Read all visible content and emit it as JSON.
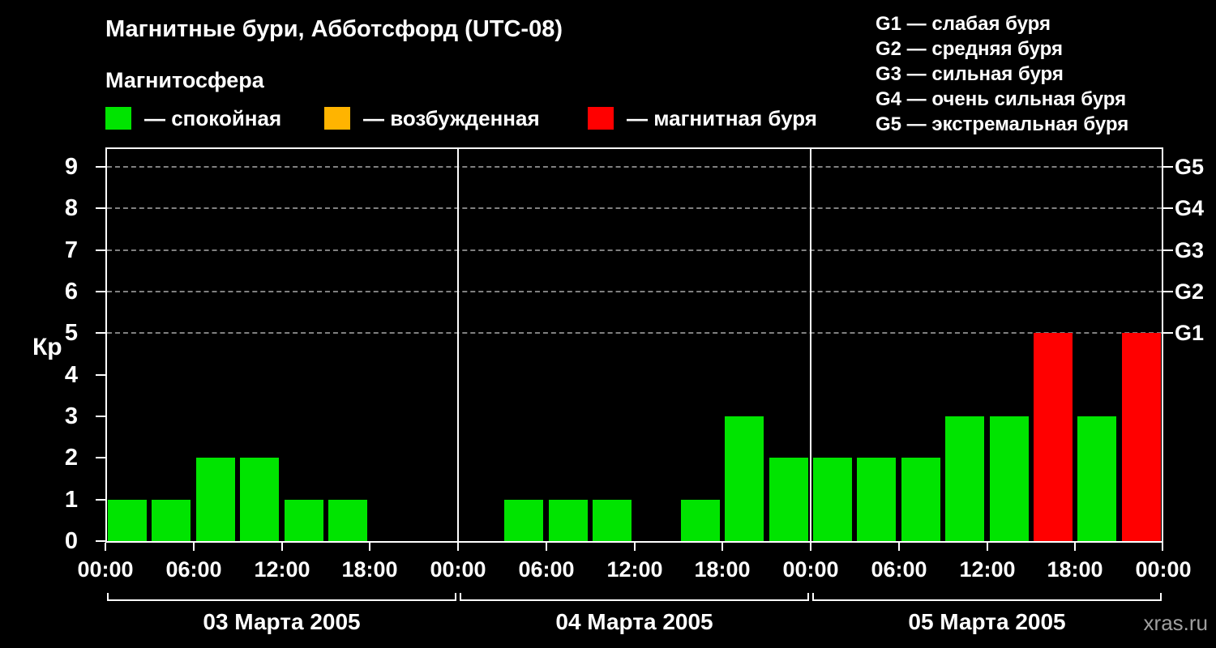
{
  "title": "Магнитные бури, Абботсфорд (UTC-08)",
  "subtitle": "Магнитосфера",
  "watermark": "xras.ru",
  "legend": {
    "items": [
      {
        "label": "— спокойная",
        "color": "#00e400"
      },
      {
        "label": "— возбужденная",
        "color": "#ffb400"
      },
      {
        "label": "— магнитная буря",
        "color": "#ff0000"
      }
    ]
  },
  "g_legend": [
    "G1 — слабая буря",
    "G2 — средняя буря",
    "G3 — сильная буря",
    "G4 — очень сильная буря",
    "G5 — экстремальная буря"
  ],
  "chart_data": {
    "type": "bar",
    "title": "Магнитные бури, Абботсфорд (UTC-08)",
    "ylabel": "Кр",
    "ylim": [
      0,
      9
    ],
    "yticks": [
      0,
      1,
      2,
      3,
      4,
      5,
      6,
      7,
      8,
      9
    ],
    "grid": "dashed horizontal lines at Kp 5-9 only",
    "right_axis": [
      {
        "label": "G1",
        "kp": 5
      },
      {
        "label": "G2",
        "kp": 6
      },
      {
        "label": "G3",
        "kp": 7
      },
      {
        "label": "G4",
        "kp": 8
      },
      {
        "label": "G5",
        "kp": 9
      }
    ],
    "x_interval_hours": 3,
    "time_ticks": [
      "00:00",
      "06:00",
      "12:00",
      "18:00"
    ],
    "final_time_tick": "00:00",
    "days": [
      {
        "date": "03 Марта 2005",
        "kp": [
          1,
          1,
          2,
          2,
          1,
          1,
          0,
          0
        ]
      },
      {
        "date": "04 Марта 2005",
        "kp": [
          0,
          1,
          1,
          1,
          0,
          1,
          3,
          2
        ]
      },
      {
        "date": "05 Марта 2005",
        "kp": [
          2,
          2,
          2,
          3,
          3,
          5,
          3,
          5
        ]
      }
    ],
    "colors": {
      "calm": "#00e400",
      "excited": "#ffb400",
      "storm": "#ff0000"
    },
    "color_rules": {
      "calm_kp_max": 3,
      "excited_kp": 4,
      "storm_kp_min": 5
    },
    "axis_color": "#ffffff",
    "grid_color": "#808080",
    "background": "#000000",
    "legend_position": "top-left and top-right"
  }
}
